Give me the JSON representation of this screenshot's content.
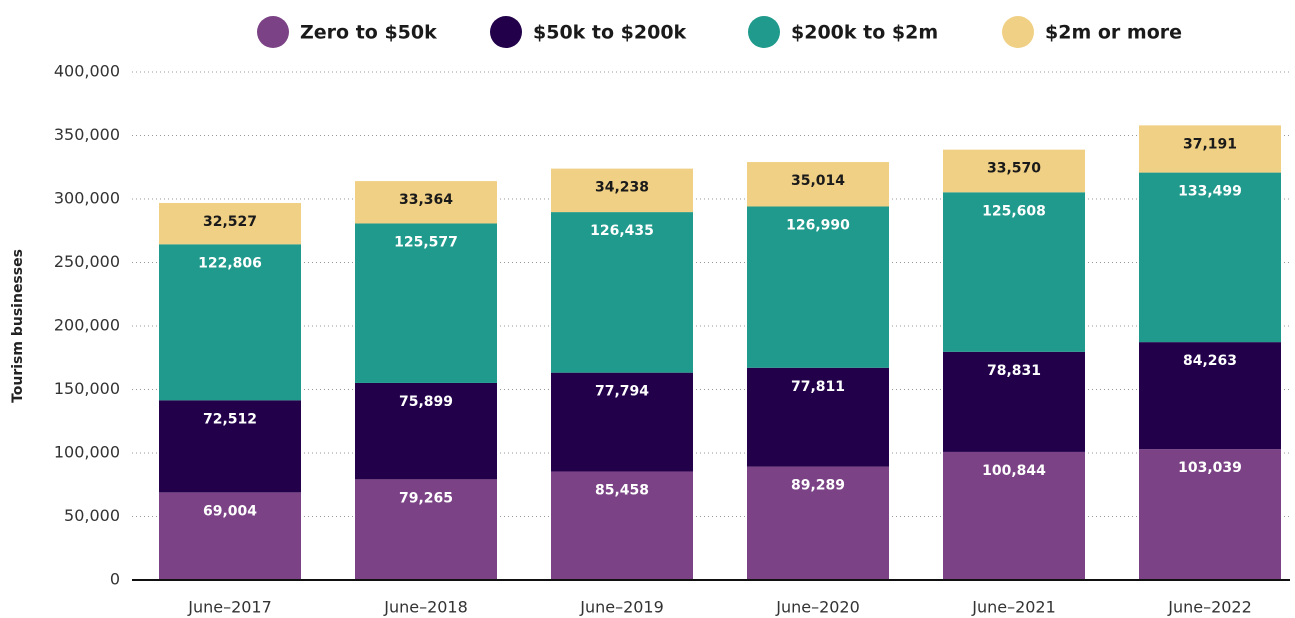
{
  "chart_data": {
    "type": "stacked_bar",
    "y_label": "Tourism businesses",
    "categories": [
      "June–2017",
      "June–2018",
      "June–2019",
      "June–2020",
      "June–2021",
      "June–2022"
    ],
    "series": [
      {
        "name": "Zero to $50k",
        "color": "#7b4385",
        "values": [
          69004,
          79265,
          85458,
          89289,
          100844,
          103039
        ],
        "value_labels": [
          "69,004",
          "79,265",
          "85,458",
          "89,289",
          "100,844",
          "103,039"
        ]
      },
      {
        "name": "$50k to $200k",
        "color": "#22004a",
        "values": [
          72512,
          75899,
          77794,
          77811,
          78831,
          84263
        ],
        "value_labels": [
          "72,512",
          "75,899",
          "77,794",
          "77,811",
          "78,831",
          "84,263"
        ]
      },
      {
        "name": "$200k to $2m",
        "color": "#1f9a8c",
        "values": [
          122806,
          125577,
          126435,
          126990,
          125608,
          133499
        ],
        "value_labels": [
          "122,806",
          "125,577",
          "126,435",
          "126,990",
          "125,608",
          "133,499"
        ]
      },
      {
        "name": "$2m or more",
        "color": "#f0d084",
        "values": [
          32527,
          33364,
          34238,
          35014,
          33570,
          37191
        ],
        "value_labels": [
          "32,527",
          "33,364",
          "34,238",
          "35,014",
          "33,570",
          "37,191"
        ]
      }
    ],
    "ylim": [
      0,
      400000
    ],
    "yticks": [
      0,
      {
        "value": 50000,
        "label": "50,000"
      },
      {
        "value": 100000,
        "label": "100,000"
      },
      {
        "value": 150000,
        "label": "150,000"
      },
      {
        "value": 200000,
        "label": "200,000"
      },
      {
        "value": 250000,
        "label": "250,000"
      },
      {
        "value": 300000,
        "label": "300,000"
      },
      {
        "value": 350000,
        "label": "350,000"
      },
      {
        "value": 400000,
        "label": "400,000"
      }
    ],
    "grid": true,
    "legend": "top"
  }
}
